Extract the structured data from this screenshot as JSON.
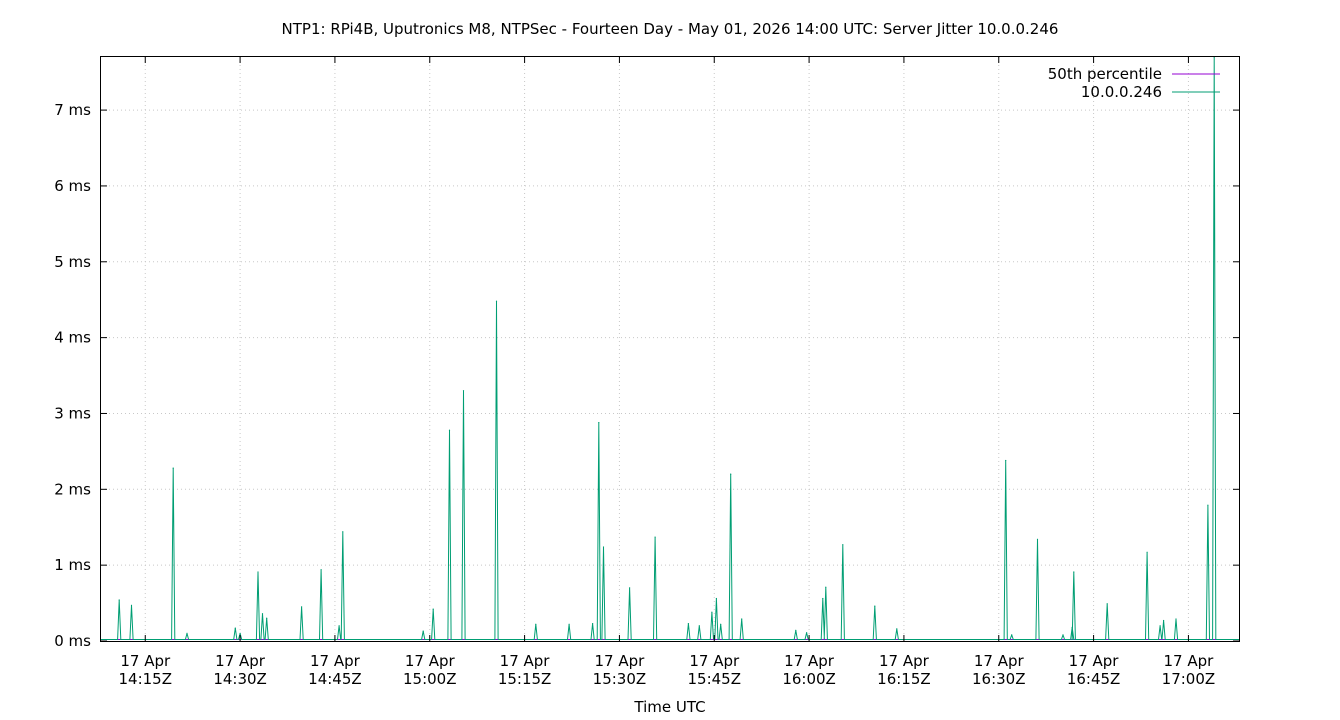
{
  "chart_data": {
    "type": "line",
    "title": "NTP1: RPi4B, Uputronics M8, NTPSec - Fourteen Day - May 01, 2026 14:00 UTC: Server Jitter 10.0.0.246",
    "xlabel": "Time UTC",
    "ylabel": "",
    "ylim": [
      0,
      7.7
    ],
    "y_unit": "ms",
    "y_ticks": [
      {
        "value": 0,
        "label": "0 ms"
      },
      {
        "value": 1,
        "label": "1 ms"
      },
      {
        "value": 2,
        "label": "2 ms"
      },
      {
        "value": 3,
        "label": "3 ms"
      },
      {
        "value": 4,
        "label": "4 ms"
      },
      {
        "value": 5,
        "label": "5 ms"
      },
      {
        "value": 6,
        "label": "6 ms"
      },
      {
        "value": 7,
        "label": "7 ms"
      }
    ],
    "xlim": [
      "2026-04-17 14:08",
      "2026-04-17 17:08"
    ],
    "x_ticks": [
      {
        "time": "2026-04-17 14:15",
        "line1": "17 Apr",
        "line2": "14:15Z"
      },
      {
        "time": "2026-04-17 14:30",
        "line1": "17 Apr",
        "line2": "14:30Z"
      },
      {
        "time": "2026-04-17 14:45",
        "line1": "17 Apr",
        "line2": "14:45Z"
      },
      {
        "time": "2026-04-17 15:00",
        "line1": "17 Apr",
        "line2": "15:00Z"
      },
      {
        "time": "2026-04-17 15:15",
        "line1": "17 Apr",
        "line2": "15:15Z"
      },
      {
        "time": "2026-04-17 15:30",
        "line1": "17 Apr",
        "line2": "15:30Z"
      },
      {
        "time": "2026-04-17 15:45",
        "line1": "17 Apr",
        "line2": "15:45Z"
      },
      {
        "time": "2026-04-17 16:00",
        "line1": "17 Apr",
        "line2": "16:00Z"
      },
      {
        "time": "2026-04-17 16:15",
        "line1": "17 Apr",
        "line2": "16:15Z"
      },
      {
        "time": "2026-04-17 16:30",
        "line1": "17 Apr",
        "line2": "16:30Z"
      },
      {
        "time": "2026-04-17 16:45",
        "line1": "17 Apr",
        "line2": "16:45Z"
      },
      {
        "time": "2026-04-17 17:00",
        "line1": "17 Apr",
        "line2": "17:00Z"
      }
    ],
    "grid": true,
    "legend_position": "top-right",
    "series": [
      {
        "name": "50th percentile",
        "color": "#9400d3",
        "values": [
          [
            "2026-04-17 14:08",
            0.02
          ],
          [
            "2026-04-17 17:08",
            0.02
          ]
        ]
      },
      {
        "name": "10.0.0.246",
        "color": "#009e73",
        "baseline": 0.02,
        "spikes": [
          [
            "2026-04-17 14:10:53",
            0.54
          ],
          [
            "2026-04-17 14:12:49",
            0.47
          ],
          [
            "2026-04-17 14:19:25",
            2.28
          ],
          [
            "2026-04-17 14:21:36",
            0.1
          ],
          [
            "2026-04-17 14:29:15",
            0.17
          ],
          [
            "2026-04-17 14:30:00",
            0.1
          ],
          [
            "2026-04-17 14:32:50",
            0.91
          ],
          [
            "2026-04-17 14:33:33",
            0.36
          ],
          [
            "2026-04-17 14:34:13",
            0.3
          ],
          [
            "2026-04-17 14:39:44",
            0.45
          ],
          [
            "2026-04-17 14:42:49",
            0.94
          ],
          [
            "2026-04-17 14:45:40",
            0.2
          ],
          [
            "2026-04-17 14:46:15",
            1.44
          ],
          [
            "2026-04-17 14:58:58",
            0.13
          ],
          [
            "2026-04-17 15:00:33",
            0.42
          ],
          [
            "2026-04-17 15:03:07",
            2.78
          ],
          [
            "2026-04-17 15:05:20",
            3.3
          ],
          [
            "2026-04-17 15:10:33",
            4.48
          ],
          [
            "2026-04-17 15:16:46",
            0.22
          ],
          [
            "2026-04-17 15:22:02",
            0.22
          ],
          [
            "2026-04-17 15:25:45",
            0.23
          ],
          [
            "2026-04-17 15:26:44",
            2.88
          ],
          [
            "2026-04-17 15:27:29",
            1.24
          ],
          [
            "2026-04-17 15:31:37",
            0.7
          ],
          [
            "2026-04-17 15:35:39",
            1.37
          ],
          [
            "2026-04-17 15:40:55",
            0.23
          ],
          [
            "2026-04-17 15:42:38",
            0.2
          ],
          [
            "2026-04-17 15:44:38",
            0.38
          ],
          [
            "2026-04-17 15:45:20",
            0.56
          ],
          [
            "2026-04-17 15:46:01",
            0.22
          ],
          [
            "2026-04-17 15:47:36",
            2.2
          ],
          [
            "2026-04-17 15:49:20",
            0.29
          ],
          [
            "2026-04-17 15:57:54",
            0.14
          ],
          [
            "2026-04-17 15:59:36",
            0.11
          ],
          [
            "2026-04-17 16:02:10",
            0.56
          ],
          [
            "2026-04-17 16:02:39",
            0.71
          ],
          [
            "2026-04-17 16:05:20",
            1.27
          ],
          [
            "2026-04-17 16:10:24",
            0.46
          ],
          [
            "2026-04-17 16:13:52",
            0.16
          ],
          [
            "2026-04-17 16:31:06",
            2.38
          ],
          [
            "2026-04-17 16:32:03",
            0.08
          ],
          [
            "2026-04-17 16:36:08",
            1.34
          ],
          [
            "2026-04-17 16:40:10",
            0.08
          ],
          [
            "2026-04-17 16:41:37",
            0.18
          ],
          [
            "2026-04-17 16:41:52",
            0.91
          ],
          [
            "2026-04-17 16:47:09",
            0.49
          ],
          [
            "2026-04-17 16:53:28",
            1.17
          ],
          [
            "2026-04-17 16:55:31",
            0.2
          ],
          [
            "2026-04-17 16:56:04",
            0.27
          ],
          [
            "2026-04-17 16:58:02",
            0.29
          ],
          [
            "2026-04-17 17:03:05",
            1.79
          ],
          [
            "2026-04-17 17:04:05",
            7.7
          ]
        ]
      }
    ]
  }
}
